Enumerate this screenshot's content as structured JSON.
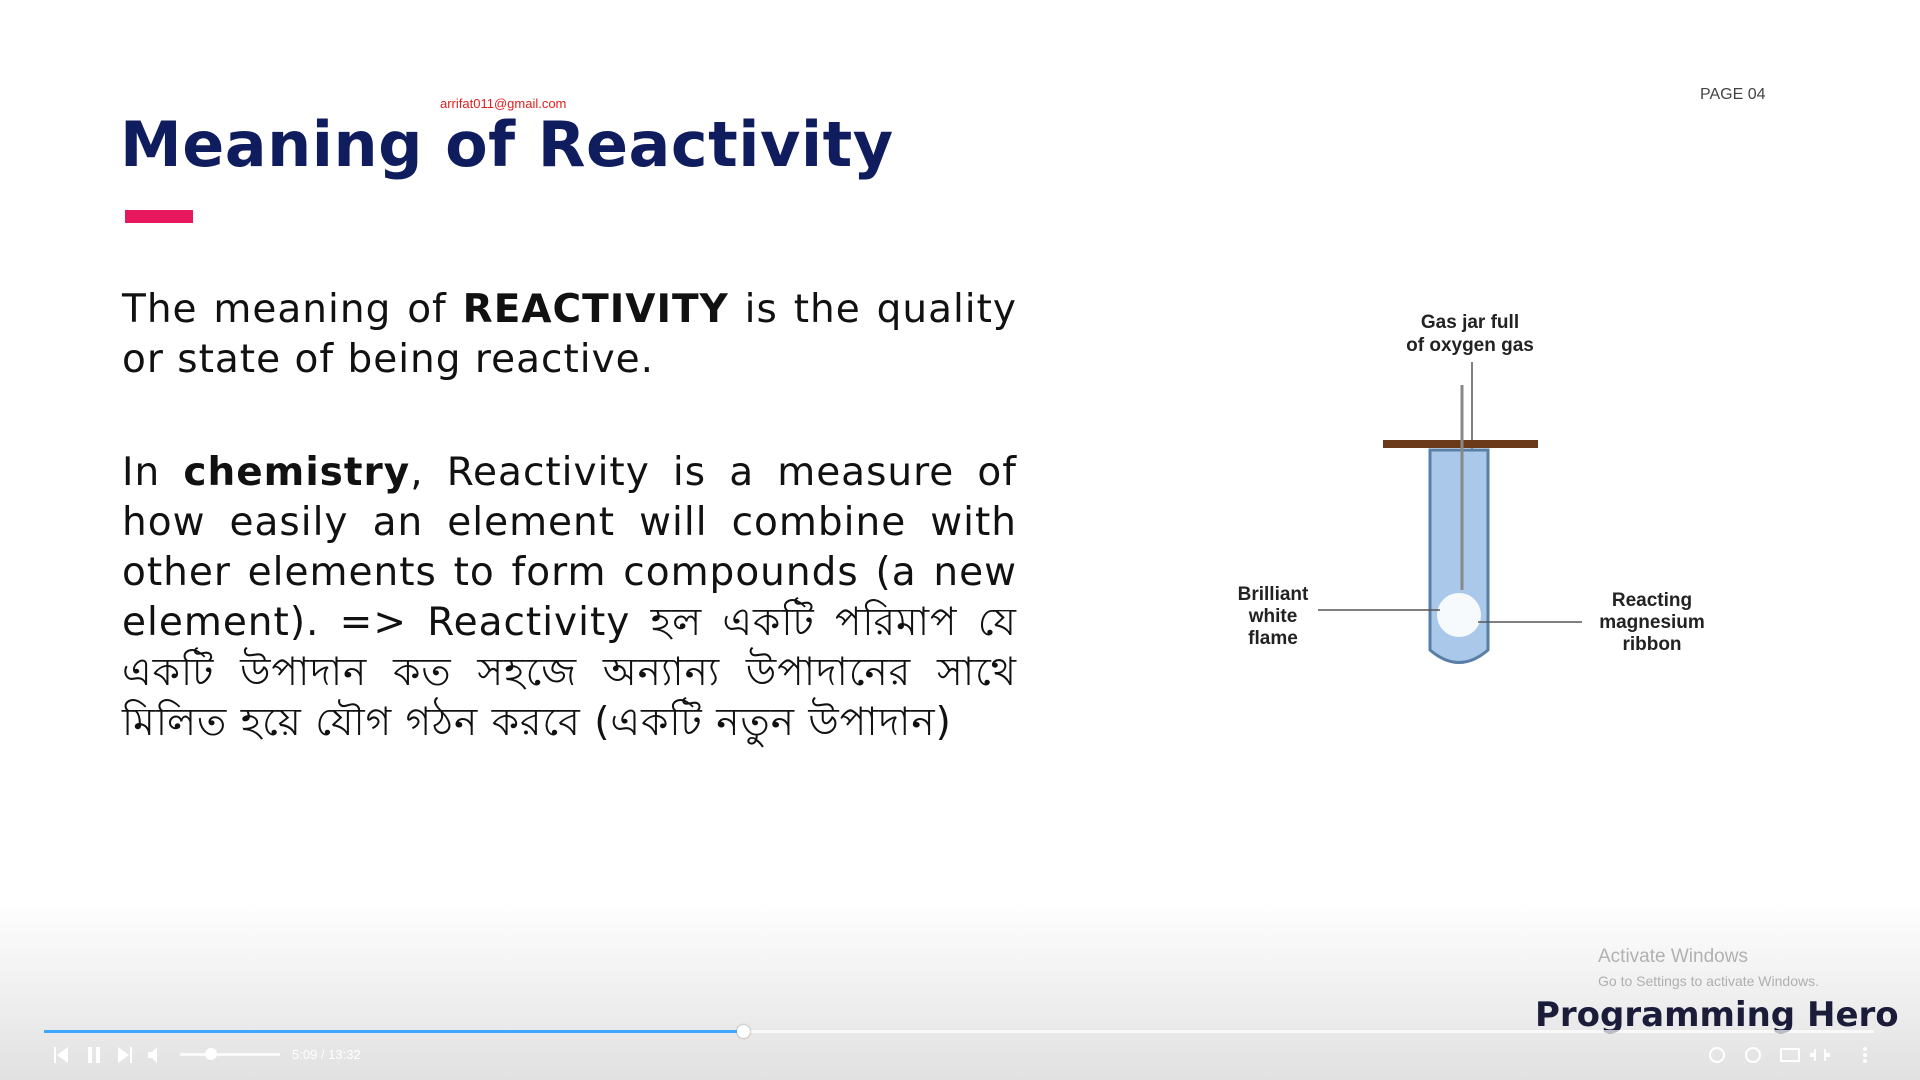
{
  "slide": {
    "email": "arrifat011@gmail.com",
    "page_label": "PAGE 04",
    "title": "Meaning of Reactivity",
    "paragraph1": [
      "The meaning of ",
      "REACTIVITY",
      " is the quality or state of being reactive."
    ],
    "paragraph2": [
      "In ",
      "chemistry",
      ", Reactivity is a measure of how easily an element will combine with other elements to form compounds (a new element). => Reactivity হল একটি পরিমাপ যে একটি উপাদান কত সহজে অন্যান্য উপাদানের সাথে মিলিত হয়ে যৌগ গঠন করবে (একটি নতুন উপাদান)"
    ],
    "diagram": {
      "top_label": [
        "Gas jar full",
        "of oxygen gas"
      ],
      "left_label": [
        "Brilliant",
        "white",
        "flame"
      ],
      "right_label": [
        "Reacting",
        "magnesium",
        "ribbon"
      ]
    }
  },
  "overlay": {
    "watermark_title": "Activate Windows",
    "watermark_text": "Go to Settings to activate Windows.",
    "brand": "Programming Hero"
  },
  "player": {
    "time": "5:09 / 13:32"
  }
}
